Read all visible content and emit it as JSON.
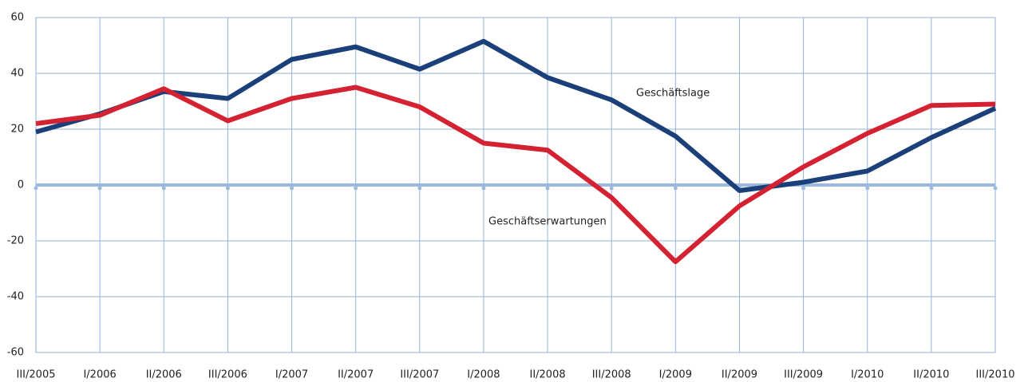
{
  "chart_data": {
    "type": "line",
    "categories": [
      "III/2005",
      "I/2006",
      "II/2006",
      "III/2006",
      "I/2007",
      "II/2007",
      "III/2007",
      "I/2008",
      "II/2008",
      "III/2008",
      "I/2009",
      "II/2009",
      "III/2009",
      "I/2010",
      "II/2010",
      "III/2010"
    ],
    "series": [
      {
        "name": "Geschäftslage",
        "color": "#1b3f78",
        "values": [
          19,
          25.5,
          33.5,
          31,
          45,
          49.5,
          41.5,
          51.5,
          38.5,
          30.5,
          17.5,
          -2,
          1,
          5,
          17,
          27.5
        ]
      },
      {
        "name": "Geschäftserwartungen",
        "color": "#d42232",
        "values": [
          22,
          25,
          34.5,
          23,
          31,
          35,
          28,
          15,
          12.5,
          -4.5,
          -27.5,
          -7.5,
          6.5,
          18.5,
          28.5,
          29
        ]
      }
    ],
    "ylim": [
      -60,
      60
    ],
    "yticks": [
      -60,
      -40,
      -20,
      0,
      20,
      40,
      60
    ],
    "grid": true
  }
}
